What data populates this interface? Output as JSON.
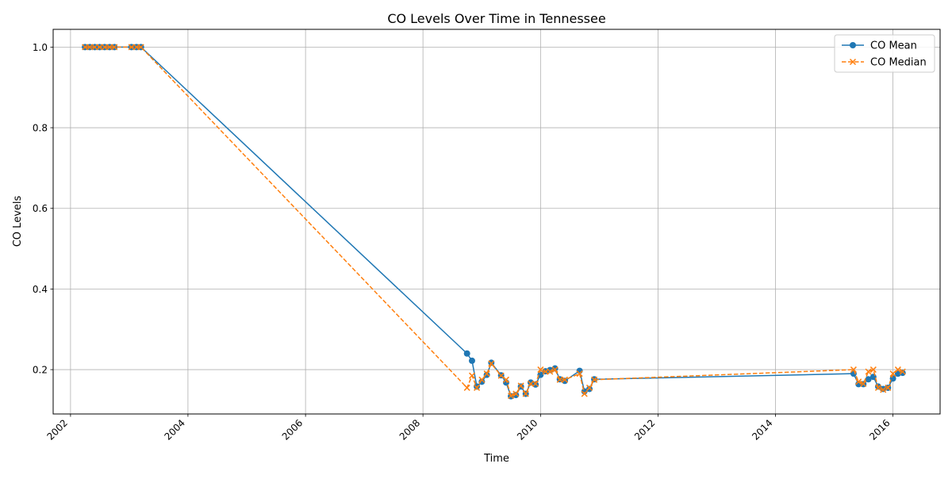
{
  "chart_data": {
    "type": "line",
    "title": "CO Levels Over Time in Tennessee",
    "xlabel": "Time",
    "ylabel": "CO Levels",
    "x_type": "date",
    "xlim": [
      "2001-09-15",
      "2016-10-20"
    ],
    "ylim": [
      0.09,
      1.044
    ],
    "x_ticks": [
      {
        "date": "2002-01-01",
        "label": "2002"
      },
      {
        "date": "2004-01-01",
        "label": "2004"
      },
      {
        "date": "2006-01-01",
        "label": "2006"
      },
      {
        "date": "2008-01-01",
        "label": "2008"
      },
      {
        "date": "2010-01-01",
        "label": "2010"
      },
      {
        "date": "2012-01-01",
        "label": "2012"
      },
      {
        "date": "2014-01-01",
        "label": "2014"
      },
      {
        "date": "2016-01-01",
        "label": "2016"
      }
    ],
    "y_ticks": [
      {
        "value": 0.2,
        "label": "0.2"
      },
      {
        "value": 0.4,
        "label": "0.4"
      },
      {
        "value": 0.6,
        "label": "0.6"
      },
      {
        "value": 0.8,
        "label": "0.8"
      },
      {
        "value": 1.0,
        "label": "1.0"
      }
    ],
    "grid": true,
    "legend_position": "top-right",
    "series": [
      {
        "name": "CO Mean",
        "color": "#1f77b4",
        "marker": "circle",
        "linestyle": "solid",
        "points": [
          {
            "x": "2002-04-01",
            "y": 1.0
          },
          {
            "x": "2002-05-01",
            "y": 1.0
          },
          {
            "x": "2002-06-01",
            "y": 1.0
          },
          {
            "x": "2002-07-01",
            "y": 1.0
          },
          {
            "x": "2002-08-01",
            "y": 1.0
          },
          {
            "x": "2002-09-01",
            "y": 1.0
          },
          {
            "x": "2002-10-01",
            "y": 1.0
          },
          {
            "x": "2003-01-15",
            "y": 1.0
          },
          {
            "x": "2003-02-15",
            "y": 1.0
          },
          {
            "x": "2003-03-15",
            "y": 1.0
          },
          {
            "x": "2008-10-01",
            "y": 0.24
          },
          {
            "x": "2008-11-01",
            "y": 0.222
          },
          {
            "x": "2008-12-01",
            "y": 0.158
          },
          {
            "x": "2009-01-01",
            "y": 0.17
          },
          {
            "x": "2009-02-01",
            "y": 0.187
          },
          {
            "x": "2009-03-01",
            "y": 0.217
          },
          {
            "x": "2009-05-01",
            "y": 0.186
          },
          {
            "x": "2009-06-01",
            "y": 0.168
          },
          {
            "x": "2009-07-01",
            "y": 0.134
          },
          {
            "x": "2009-08-01",
            "y": 0.137
          },
          {
            "x": "2009-09-01",
            "y": 0.158
          },
          {
            "x": "2009-10-01",
            "y": 0.14
          },
          {
            "x": "2009-11-01",
            "y": 0.168
          },
          {
            "x": "2009-12-01",
            "y": 0.163
          },
          {
            "x": "2010-01-01",
            "y": 0.187
          },
          {
            "x": "2010-02-01",
            "y": 0.196
          },
          {
            "x": "2010-03-01",
            "y": 0.199
          },
          {
            "x": "2010-04-01",
            "y": 0.203
          },
          {
            "x": "2010-05-01",
            "y": 0.176
          },
          {
            "x": "2010-06-01",
            "y": 0.172
          },
          {
            "x": "2010-09-01",
            "y": 0.197
          },
          {
            "x": "2010-10-01",
            "y": 0.146
          },
          {
            "x": "2010-11-01",
            "y": 0.152
          },
          {
            "x": "2010-12-01",
            "y": 0.176
          },
          {
            "x": "2015-05-01",
            "y": 0.19
          },
          {
            "x": "2015-06-01",
            "y": 0.164
          },
          {
            "x": "2015-07-01",
            "y": 0.164
          },
          {
            "x": "2015-08-01",
            "y": 0.176
          },
          {
            "x": "2015-09-01",
            "y": 0.182
          },
          {
            "x": "2015-10-01",
            "y": 0.158
          },
          {
            "x": "2015-11-01",
            "y": 0.152
          },
          {
            "x": "2015-12-01",
            "y": 0.155
          },
          {
            "x": "2016-01-01",
            "y": 0.178
          },
          {
            "x": "2016-02-01",
            "y": 0.19
          },
          {
            "x": "2016-03-01",
            "y": 0.192
          }
        ]
      },
      {
        "name": "CO Median",
        "color": "#ff7f0e",
        "marker": "x",
        "linestyle": "dashed",
        "points": [
          {
            "x": "2002-04-01",
            "y": 1.0
          },
          {
            "x": "2002-05-01",
            "y": 1.0
          },
          {
            "x": "2002-06-01",
            "y": 1.0
          },
          {
            "x": "2002-07-01",
            "y": 1.0
          },
          {
            "x": "2002-08-01",
            "y": 1.0
          },
          {
            "x": "2002-09-01",
            "y": 1.0
          },
          {
            "x": "2002-10-01",
            "y": 1.0
          },
          {
            "x": "2003-01-15",
            "y": 1.0
          },
          {
            "x": "2003-02-15",
            "y": 1.0
          },
          {
            "x": "2003-03-15",
            "y": 1.0
          },
          {
            "x": "2008-10-01",
            "y": 0.155
          },
          {
            "x": "2008-11-01",
            "y": 0.185
          },
          {
            "x": "2008-12-01",
            "y": 0.155
          },
          {
            "x": "2009-01-01",
            "y": 0.175
          },
          {
            "x": "2009-02-01",
            "y": 0.19
          },
          {
            "x": "2009-03-01",
            "y": 0.215
          },
          {
            "x": "2009-05-01",
            "y": 0.185
          },
          {
            "x": "2009-06-01",
            "y": 0.175
          },
          {
            "x": "2009-07-01",
            "y": 0.135
          },
          {
            "x": "2009-08-01",
            "y": 0.14
          },
          {
            "x": "2009-09-01",
            "y": 0.16
          },
          {
            "x": "2009-10-01",
            "y": 0.14
          },
          {
            "x": "2009-11-01",
            "y": 0.165
          },
          {
            "x": "2009-12-01",
            "y": 0.165
          },
          {
            "x": "2010-01-01",
            "y": 0.2
          },
          {
            "x": "2010-02-01",
            "y": 0.195
          },
          {
            "x": "2010-03-01",
            "y": 0.195
          },
          {
            "x": "2010-04-01",
            "y": 0.2
          },
          {
            "x": "2010-05-01",
            "y": 0.175
          },
          {
            "x": "2010-06-01",
            "y": 0.175
          },
          {
            "x": "2010-09-01",
            "y": 0.19
          },
          {
            "x": "2010-10-01",
            "y": 0.14
          },
          {
            "x": "2010-11-01",
            "y": 0.155
          },
          {
            "x": "2010-12-01",
            "y": 0.175
          },
          {
            "x": "2015-05-01",
            "y": 0.2
          },
          {
            "x": "2015-06-01",
            "y": 0.17
          },
          {
            "x": "2015-07-01",
            "y": 0.165
          },
          {
            "x": "2015-08-01",
            "y": 0.195
          },
          {
            "x": "2015-09-01",
            "y": 0.2
          },
          {
            "x": "2015-10-01",
            "y": 0.155
          },
          {
            "x": "2015-11-01",
            "y": 0.15
          },
          {
            "x": "2015-12-01",
            "y": 0.155
          },
          {
            "x": "2016-01-01",
            "y": 0.19
          },
          {
            "x": "2016-02-01",
            "y": 0.2
          },
          {
            "x": "2016-03-01",
            "y": 0.195
          }
        ]
      }
    ]
  }
}
